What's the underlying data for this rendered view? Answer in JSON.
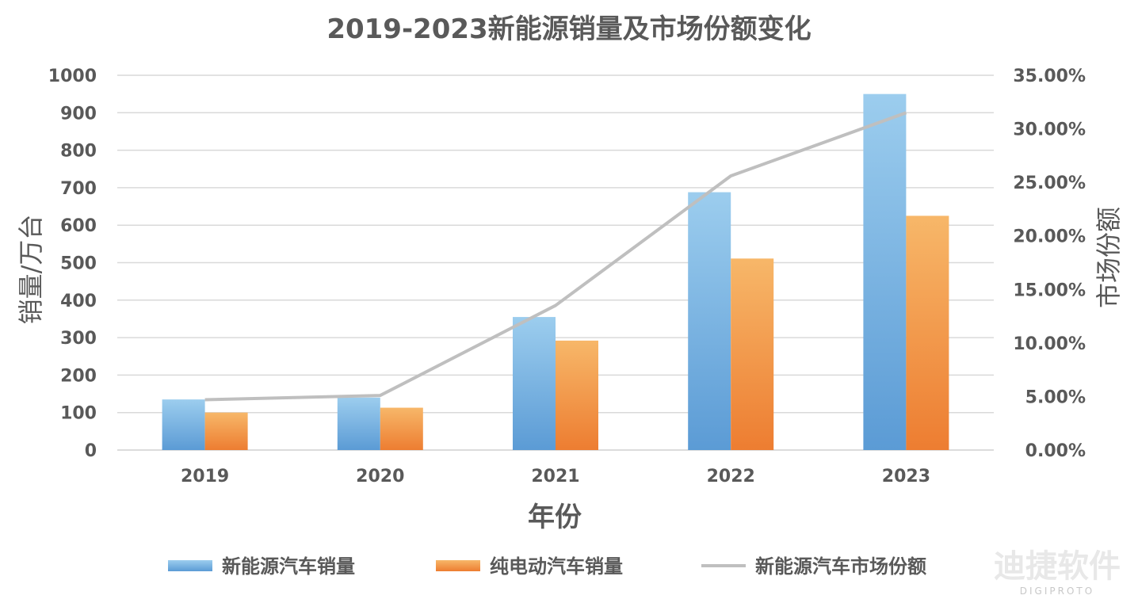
{
  "chart_data": {
    "type": "bar",
    "title": "2019-2023新能源销量及市场份额变化",
    "xlabel": "年份",
    "ylabel": "销量/万台",
    "y2label": "市场份额",
    "categories": [
      "2019",
      "2020",
      "2021",
      "2022",
      "2023"
    ],
    "ylim": [
      0,
      1000
    ],
    "yticks": [
      "0",
      "100",
      "200",
      "300",
      "400",
      "500",
      "600",
      "700",
      "800",
      "900",
      "1000"
    ],
    "y2lim": [
      0,
      0.35
    ],
    "y2ticks": [
      "0.00%",
      "5.00%",
      "10.00%",
      "15.00%",
      "20.00%",
      "25.00%",
      "30.00%",
      "35.00%"
    ],
    "grid": true,
    "legend_position": "bottom",
    "series": [
      {
        "name": "新能源汽车销量",
        "type": "bar",
        "axis": "left",
        "values": [
          135,
          140,
          355,
          688,
          950
        ],
        "color_top": "#9ccdee",
        "color_bottom": "#5b9bd5"
      },
      {
        "name": "纯电动汽车销量",
        "type": "bar",
        "axis": "left",
        "values": [
          100,
          113,
          292,
          511,
          625
        ],
        "color_top": "#f7b769",
        "color_bottom": "#ed7d31"
      },
      {
        "name": "新能源汽车市场份额",
        "type": "line",
        "axis": "right",
        "values": [
          0.047,
          0.051,
          0.135,
          0.256,
          0.315
        ],
        "color": "#bfbfbf"
      }
    ]
  },
  "watermark": {
    "text": "迪捷软件",
    "subtext": "DIGIPROTO"
  }
}
